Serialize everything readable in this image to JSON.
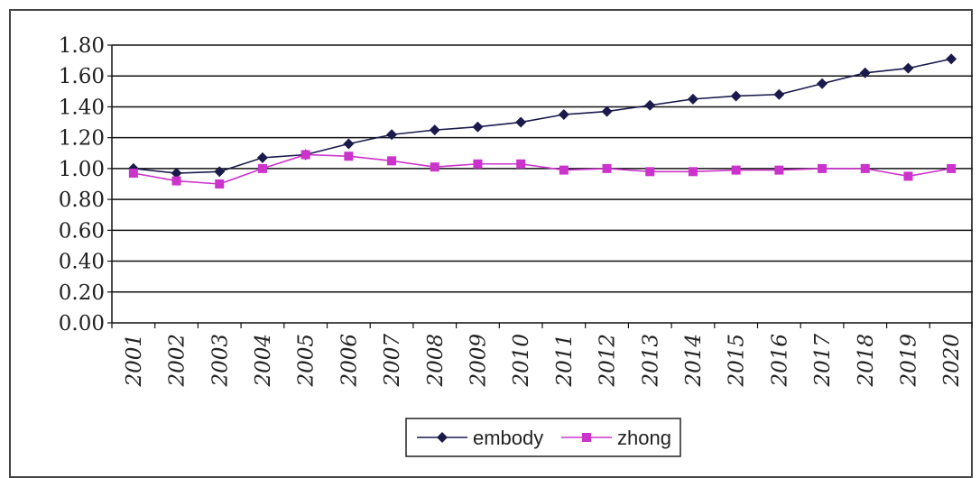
{
  "chart_data": {
    "type": "line",
    "title": "",
    "xlabel": "",
    "ylabel": "",
    "ylim": [
      0,
      1.8
    ],
    "ytick_step": 0.2,
    "yticks": [
      "0.00",
      "0.20",
      "0.40",
      "0.60",
      "0.80",
      "1.00",
      "1.20",
      "1.40",
      "1.60",
      "1.80"
    ],
    "grid": true,
    "legend_position": "bottom",
    "categories": [
      "2001",
      "2002",
      "2003",
      "2004",
      "2005",
      "2006",
      "2007",
      "2008",
      "2009",
      "2010",
      "2011",
      "2012",
      "2013",
      "2014",
      "2015",
      "2016",
      "2017",
      "2018",
      "2019",
      "2020"
    ],
    "series": [
      {
        "name": "embody",
        "color": "#1a1a4d",
        "marker": "diamond",
        "values": [
          1.0,
          0.97,
          0.98,
          1.07,
          1.09,
          1.16,
          1.22,
          1.25,
          1.27,
          1.3,
          1.35,
          1.37,
          1.41,
          1.45,
          1.47,
          1.48,
          1.55,
          1.62,
          1.65,
          1.71
        ]
      },
      {
        "name": "zhong",
        "color": "#cc33cc",
        "marker": "square",
        "values": [
          0.97,
          0.92,
          0.9,
          1.0,
          1.09,
          1.08,
          1.05,
          1.01,
          1.03,
          1.03,
          0.99,
          1.0,
          0.98,
          0.98,
          0.99,
          0.99,
          1.0,
          1.0,
          0.95,
          1.0
        ]
      }
    ]
  }
}
